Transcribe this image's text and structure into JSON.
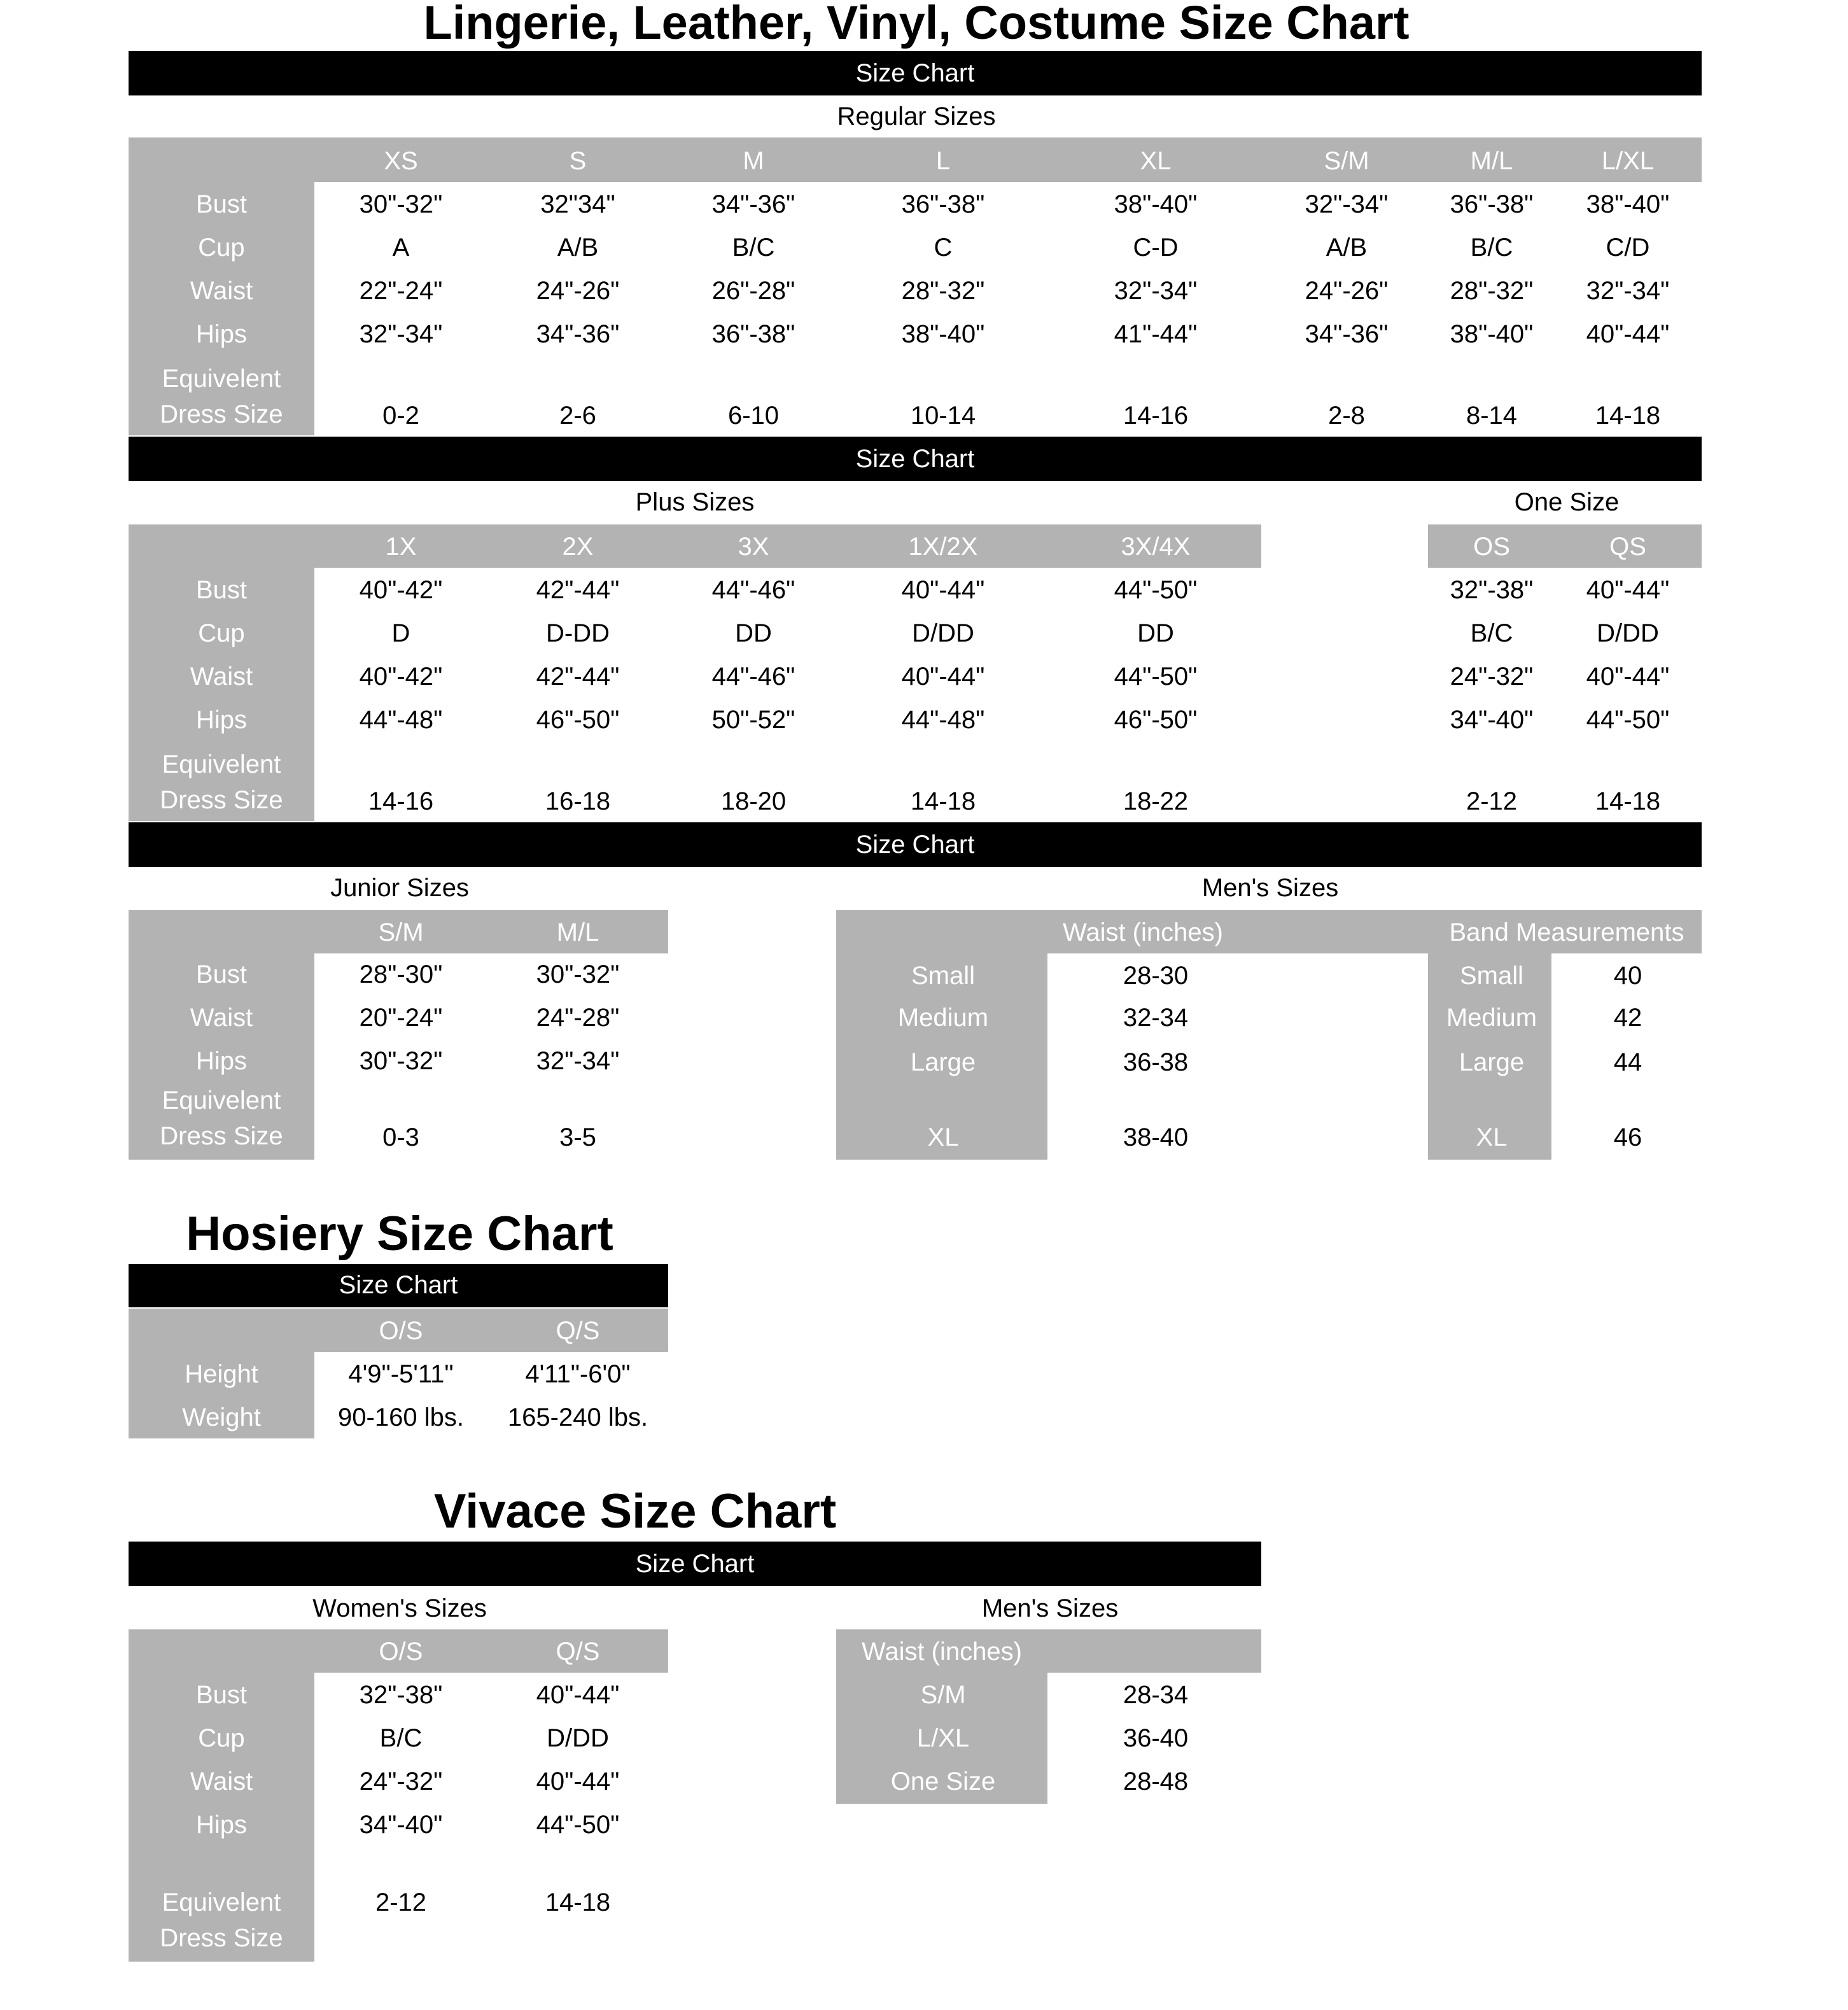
{
  "colors": {
    "bar": "#000000",
    "gray": "#b3b3b3",
    "label_text": "#ffffff"
  },
  "bar_label": "Size Chart",
  "dress_label": [
    "Equivelent",
    "Dress Size"
  ],
  "main": {
    "title": "Lingerie, Leather, Vinyl, Costume Size Chart",
    "regular": {
      "label": "Regular Sizes",
      "columns": [
        "XS",
        "S",
        "M",
        "L",
        "XL",
        "S/M",
        "M/L",
        "L/XL"
      ],
      "rows": [
        {
          "label": "Bust",
          "values": [
            "30\"-32\"",
            "32\"34\"",
            "34\"-36\"",
            "36\"-38\"",
            "38\"-40\"",
            "32\"-34\"",
            "36\"-38\"",
            "38\"-40\""
          ]
        },
        {
          "label": "Cup",
          "values": [
            "A",
            "A/B",
            "B/C",
            "C",
            "C-D",
            "A/B",
            "B/C",
            "C/D"
          ]
        },
        {
          "label": "Waist",
          "values": [
            "22\"-24\"",
            "24\"-26\"",
            "26\"-28\"",
            "28\"-32\"",
            "32\"-34\"",
            "24\"-26\"",
            "28\"-32\"",
            "32\"-34\""
          ]
        },
        {
          "label": "Hips",
          "values": [
            "32\"-34\"",
            "34\"-36\"",
            "36\"-38\"",
            "38\"-40\"",
            "41\"-44\"",
            "34\"-36\"",
            "38\"-40\"",
            "40\"-44\""
          ]
        }
      ],
      "dress": [
        "0-2",
        "2-6",
        "6-10",
        "10-14",
        "14-16",
        "2-8",
        "8-14",
        "14-18"
      ]
    },
    "plus": {
      "label": "Plus Sizes",
      "columns": [
        "1X",
        "2X",
        "3X",
        "1X/2X",
        "3X/4X"
      ],
      "rows": [
        {
          "label": "Bust",
          "values": [
            "40\"-42\"",
            "42\"-44\"",
            "44\"-46\"",
            "40\"-44\"",
            "44\"-50\""
          ]
        },
        {
          "label": "Cup",
          "values": [
            "D",
            "D-DD",
            "DD",
            "D/DD",
            "DD"
          ]
        },
        {
          "label": "Waist",
          "values": [
            "40\"-42\"",
            "42\"-44\"",
            "44\"-46\"",
            "40\"-44\"",
            "44\"-50\""
          ]
        },
        {
          "label": "Hips",
          "values": [
            "44\"-48\"",
            "46\"-50\"",
            "50\"-52\"",
            "44\"-48\"",
            "46\"-50\""
          ]
        }
      ],
      "dress": [
        "14-16",
        "16-18",
        "18-20",
        "14-18",
        "18-22"
      ]
    },
    "one_size": {
      "label": "One Size",
      "columns": [
        "OS",
        "QS"
      ],
      "rows": [
        {
          "values": [
            "32\"-38\"",
            "40\"-44\""
          ]
        },
        {
          "values": [
            "B/C",
            "D/DD"
          ]
        },
        {
          "values": [
            "24\"-32\"",
            "40\"-44\""
          ]
        },
        {
          "values": [
            "34\"-40\"",
            "44\"-50\""
          ]
        }
      ],
      "dress": [
        "2-12",
        "14-18"
      ]
    },
    "junior": {
      "label": "Junior Sizes",
      "columns": [
        "S/M",
        "M/L"
      ],
      "rows": [
        {
          "label": "Bust",
          "values": [
            "28\"-30\"",
            "30\"-32\""
          ]
        },
        {
          "label": "Waist",
          "values": [
            "20\"-24\"",
            "24\"-28\""
          ]
        },
        {
          "label": "Hips",
          "values": [
            "30\"-32\"",
            "32\"-34\""
          ]
        }
      ],
      "dress": [
        "0-3",
        "3-5"
      ]
    },
    "mens": {
      "label": "Men's Sizes",
      "waist_header": "Waist (inches)",
      "band_header": "Band Measurements",
      "rows": [
        {
          "label": "Small",
          "waist": "28-30",
          "band_label": "Small",
          "band": "40"
        },
        {
          "label": "Medium",
          "waist": "32-34",
          "band_label": "Medium",
          "band": "42"
        },
        {
          "label": "Large",
          "waist": "36-38",
          "band_label": "Large",
          "band": "44"
        },
        {
          "label": "XL",
          "waist": "38-40",
          "band_label": "XL",
          "band": "46"
        }
      ]
    }
  },
  "hosiery": {
    "title": "Hosiery Size Chart",
    "columns": [
      "O/S",
      "Q/S"
    ],
    "rows": [
      {
        "label": "Height",
        "values": [
          "4'9\"-5'11\"",
          "4'11\"-6'0\""
        ]
      },
      {
        "label": "Weight",
        "values": [
          "90-160 lbs.",
          "165-240 lbs."
        ]
      }
    ]
  },
  "vivace": {
    "title": "Vivace Size Chart",
    "womens": {
      "label": "Women's Sizes",
      "columns": [
        "O/S",
        "Q/S"
      ],
      "rows": [
        {
          "label": "Bust",
          "values": [
            "32\"-38\"",
            "40\"-44\""
          ]
        },
        {
          "label": "Cup",
          "values": [
            "B/C",
            "D/DD"
          ]
        },
        {
          "label": "Waist",
          "values": [
            "24\"-32\"",
            "40\"-44\""
          ]
        },
        {
          "label": "Hips",
          "values": [
            "34\"-40\"",
            "44\"-50\""
          ]
        }
      ],
      "dress": [
        "2-12",
        "14-18"
      ]
    },
    "mens": {
      "label": "Men's Sizes",
      "waist_header": "Waist (inches)",
      "rows": [
        {
          "label": "S/M",
          "value": "28-34"
        },
        {
          "label": "L/XL",
          "value": "36-40"
        },
        {
          "label": "One Size",
          "value": "28-48"
        }
      ]
    }
  }
}
